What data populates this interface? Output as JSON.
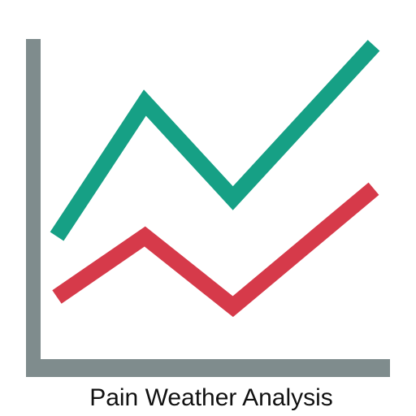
{
  "caption": "Pain Weather Analysis",
  "colors": {
    "axis": "#7f8c8d",
    "series_1": "#16a085",
    "series_2": "#d63a4a",
    "background": "#ffffff"
  },
  "chart_data": {
    "type": "line",
    "title": "Pain Weather Analysis",
    "xlabel": "",
    "ylabel": "",
    "grid": false,
    "legend": "none",
    "x": [
      1,
      2,
      3,
      4,
      5
    ],
    "xlim": [
      0.75,
      5.0
    ],
    "ylim": [
      0,
      10
    ],
    "series": [
      {
        "color": "#16a085",
        "values": [
          3.8,
          8.0,
          5.0,
          9.8
        ],
        "x": [
          1,
          2,
          3,
          4.6
        ]
      },
      {
        "color": "#d63a4a",
        "values": [
          1.9,
          3.8,
          1.6,
          5.3
        ],
        "x": [
          1,
          2,
          3,
          4.6
        ]
      }
    ]
  }
}
